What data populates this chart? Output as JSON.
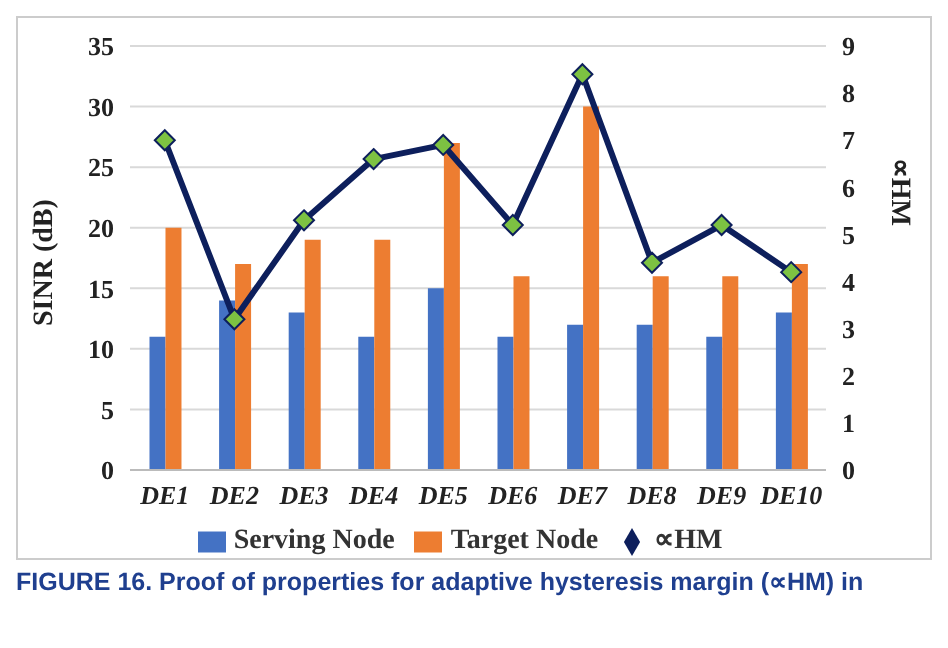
{
  "chart_data": {
    "type": "bar",
    "categories": [
      "DE1",
      "DE2",
      "DE3",
      "DE4",
      "DE5",
      "DE6",
      "DE7",
      "DE8",
      "DE9",
      "DE10"
    ],
    "series": [
      {
        "name": "Serving Node",
        "color": "#4472c4",
        "values": [
          11,
          14,
          13,
          11,
          15,
          11,
          12,
          12,
          11,
          13
        ]
      },
      {
        "name": "Target Node",
        "color": "#ed7d31",
        "values": [
          20,
          17,
          19,
          19,
          27,
          16,
          30,
          16,
          16,
          17
        ]
      },
      {
        "name": "∝HM",
        "type": "line",
        "axis": "y2",
        "color": "#0d1f5c",
        "marker": "diamond",
        "values": [
          7.0,
          3.2,
          5.3,
          6.6,
          6.9,
          5.2,
          8.4,
          4.4,
          5.2,
          4.2
        ]
      }
    ],
    "ylabel": "SINR (dB)",
    "y2label": "∝HM",
    "ylim": [
      0,
      35
    ],
    "yticks": [
      0,
      5,
      10,
      15,
      20,
      25,
      30,
      35
    ],
    "y2lim": [
      0,
      9
    ],
    "y2ticks": [
      0,
      1,
      2,
      3,
      4,
      5,
      6,
      7,
      8,
      9
    ],
    "grid": "y",
    "legend": "bottom",
    "annotations": [
      "FIGURE 16. Proof of properties for adaptive hysteresis margin (∝HM) in"
    ]
  }
}
